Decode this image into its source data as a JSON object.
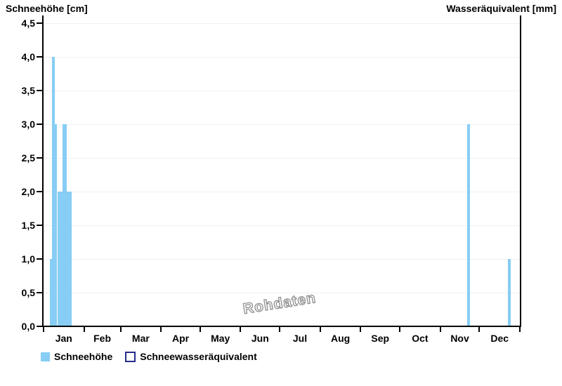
{
  "header": {
    "left_title": "Schneehöhe [cm]",
    "right_title": "Wasseräquivalent [mm]"
  },
  "watermark": "Rohdaten",
  "legend": {
    "items": [
      {
        "label": "Schneehöhe",
        "swatch": "filled",
        "color": "#87CDF5"
      },
      {
        "label": "Schneewasseräquivalent",
        "swatch": "outlined",
        "color": "#FFFFFF",
        "border_color": "#262C8C"
      }
    ]
  },
  "chart_data": {
    "type": "bar",
    "left_axis_label": "Schneehöhe [cm]",
    "right_axis_label": "Wasseräquivalent [mm]",
    "grid": "horizontal",
    "legend_position": "bottom-left",
    "watermark": "Rohdaten",
    "y_axis": {
      "min": 0,
      "max": 4.5,
      "step": 0.5,
      "decimal_style": "comma",
      "tick_labels": [
        "0,0",
        "0,5",
        "1,0",
        "1,5",
        "2,0",
        "2,5",
        "3,0",
        "3,5",
        "4,0",
        "4,5"
      ]
    },
    "x_axis": {
      "unit": "day_of_year",
      "range_days": [
        0,
        365
      ],
      "month_labels": [
        "Jan",
        "Feb",
        "Mar",
        "Apr",
        "May",
        "Jun",
        "Jul",
        "Aug",
        "Sep",
        "Oct",
        "Nov",
        "Dec"
      ],
      "month_boundaries_day": [
        0,
        31,
        59,
        90,
        120,
        151,
        181,
        212,
        243,
        273,
        304,
        334,
        365
      ]
    },
    "series": [
      {
        "name": "Schneehöhe",
        "unit": "cm",
        "color": "#87CDF5",
        "segments": [
          {
            "start_day": 4.9,
            "end_day": 6.2,
            "value": 1.0
          },
          {
            "start_day": 6.2,
            "end_day": 8.4,
            "value": 4.0
          },
          {
            "start_day": 8.4,
            "end_day": 10.5,
            "value": 3.0
          },
          {
            "start_day": 10.5,
            "end_day": 14.3,
            "value": 2.0
          },
          {
            "start_day": 14.3,
            "end_day": 18.0,
            "value": 3.0
          },
          {
            "start_day": 18.0,
            "end_day": 21.8,
            "value": 2.0
          },
          {
            "start_day": 324.8,
            "end_day": 327.0,
            "value": 3.0
          },
          {
            "start_day": 356.0,
            "end_day": 358.2,
            "value": 1.0
          }
        ]
      },
      {
        "name": "Schneewasseräquivalent",
        "unit": "mm",
        "color": "#FFFFFF",
        "border_color": "#262C8C",
        "segments": []
      }
    ]
  }
}
